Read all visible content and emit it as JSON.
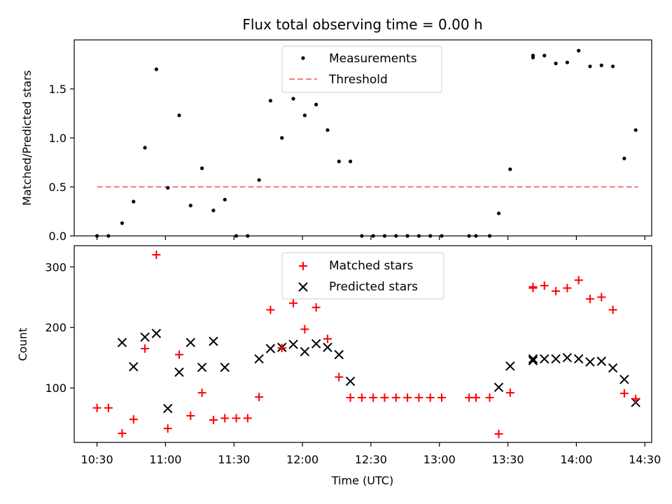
{
  "figure": {
    "title": "Flux total observing time = 0.00 h"
  },
  "colors": {
    "measurement": "#000000",
    "threshold": "#f08080",
    "matched": "#ff0000",
    "predicted": "#000000"
  },
  "chart_data": [
    {
      "type": "scatter",
      "ylabel": "Matched/Predicted stars",
      "xlabel": "",
      "xlim": [
        "10:20",
        "14:33"
      ],
      "ylim": [
        0,
        2.0
      ],
      "yticks": [
        0.0,
        0.5,
        1.0,
        1.5
      ],
      "ytick_labels": [
        "0.0",
        "0.5",
        "1.0",
        "1.5"
      ],
      "legend": {
        "placement": "top-center",
        "entries": [
          "Measurements",
          "Threshold"
        ]
      },
      "threshold": {
        "name": "Threshold",
        "value": 0.5,
        "x_range": [
          "10:30",
          "14:27"
        ]
      },
      "series": [
        {
          "name": "Measurements",
          "marker": "dot",
          "points": [
            [
              "10:30",
              0.0
            ],
            [
              "10:35",
              0.0
            ],
            [
              "10:41",
              0.13
            ],
            [
              "10:46",
              0.35
            ],
            [
              "10:51",
              0.9
            ],
            [
              "10:56",
              1.7
            ],
            [
              "11:01",
              0.49
            ],
            [
              "11:06",
              1.23
            ],
            [
              "11:11",
              0.31
            ],
            [
              "11:16",
              0.69
            ],
            [
              "11:21",
              0.26
            ],
            [
              "11:26",
              0.37
            ],
            [
              "11:31",
              0.0
            ],
            [
              "11:36",
              0.0
            ],
            [
              "11:41",
              0.57
            ],
            [
              "11:46",
              1.38
            ],
            [
              "11:51",
              1.0
            ],
            [
              "11:56",
              1.4
            ],
            [
              "12:01",
              1.23
            ],
            [
              "12:06",
              1.34
            ],
            [
              "12:11",
              1.08
            ],
            [
              "12:16",
              0.76
            ],
            [
              "12:21",
              0.76
            ],
            [
              "12:26",
              0.0
            ],
            [
              "12:31",
              0.0
            ],
            [
              "12:36",
              0.0
            ],
            [
              "12:41",
              0.0
            ],
            [
              "12:46",
              0.0
            ],
            [
              "12:51",
              0.0
            ],
            [
              "12:56",
              0.0
            ],
            [
              "13:01",
              0.0
            ],
            [
              "13:13",
              0.0
            ],
            [
              "13:16",
              0.0
            ],
            [
              "13:22",
              0.0
            ],
            [
              "13:26",
              0.23
            ],
            [
              "13:31",
              0.68
            ],
            [
              "13:41",
              1.82
            ],
            [
              "13:41",
              1.84
            ],
            [
              "13:46",
              1.84
            ],
            [
              "13:51",
              1.76
            ],
            [
              "13:56",
              1.77
            ],
            [
              "14:01",
              1.89
            ],
            [
              "14:06",
              1.73
            ],
            [
              "14:11",
              1.74
            ],
            [
              "14:16",
              1.73
            ],
            [
              "14:21",
              0.79
            ],
            [
              "14:26",
              1.08
            ]
          ]
        }
      ]
    },
    {
      "type": "scatter",
      "ylabel": "Count",
      "xlabel": "Time (UTC)",
      "xlim": [
        "10:20",
        "14:33"
      ],
      "ylim": [
        10,
        335
      ],
      "yticks": [
        100,
        200,
        300
      ],
      "ytick_labels": [
        "100",
        "200",
        "300"
      ],
      "xticks": [
        "10:30",
        "11:00",
        "11:30",
        "12:00",
        "12:30",
        "13:00",
        "13:30",
        "14:00",
        "14:30"
      ],
      "xtick_labels": [
        "10:30",
        "11:00",
        "11:30",
        "12:00",
        "12:30",
        "13:00",
        "13:30",
        "14:00",
        "14:30"
      ],
      "legend": {
        "placement": "top-center",
        "entries": [
          "Matched stars",
          "Predicted stars"
        ]
      },
      "series": [
        {
          "name": "Matched stars",
          "marker": "plus",
          "points": [
            [
              "10:30",
              67
            ],
            [
              "10:35",
              67
            ],
            [
              "10:41",
              25
            ],
            [
              "10:46",
              48
            ],
            [
              "10:51",
              165
            ],
            [
              "10:56",
              320
            ],
            [
              "11:01",
              33
            ],
            [
              "11:06",
              155
            ],
            [
              "11:11",
              54
            ],
            [
              "11:16",
              92
            ],
            [
              "11:21",
              47
            ],
            [
              "11:26",
              50
            ],
            [
              "11:31",
              50
            ],
            [
              "11:36",
              50
            ],
            [
              "11:41",
              85
            ],
            [
              "11:46",
              229
            ],
            [
              "11:51",
              166
            ],
            [
              "11:56",
              240
            ],
            [
              "12:01",
              197
            ],
            [
              "12:06",
              233
            ],
            [
              "12:11",
              181
            ],
            [
              "12:16",
              118
            ],
            [
              "12:21",
              84
            ],
            [
              "12:26",
              84
            ],
            [
              "12:31",
              84
            ],
            [
              "12:36",
              84
            ],
            [
              "12:41",
              84
            ],
            [
              "12:46",
              84
            ],
            [
              "12:51",
              84
            ],
            [
              "12:56",
              84
            ],
            [
              "13:01",
              84
            ],
            [
              "13:13",
              84
            ],
            [
              "13:16",
              84
            ],
            [
              "13:22",
              84
            ],
            [
              "13:26",
              24
            ],
            [
              "13:31",
              92
            ],
            [
              "13:41",
              265
            ],
            [
              "13:41",
              267
            ],
            [
              "13:46",
              269
            ],
            [
              "13:51",
              260
            ],
            [
              "13:56",
              265
            ],
            [
              "14:01",
              278
            ],
            [
              "14:06",
              247
            ],
            [
              "14:11",
              250
            ],
            [
              "14:16",
              229
            ],
            [
              "14:21",
              91
            ],
            [
              "14:26",
              82
            ]
          ]
        },
        {
          "name": "Predicted stars",
          "marker": "x",
          "points": [
            [
              "10:41",
              175
            ],
            [
              "10:46",
              135
            ],
            [
              "10:51",
              184
            ],
            [
              "10:56",
              190
            ],
            [
              "11:01",
              66
            ],
            [
              "11:06",
              126
            ],
            [
              "11:11",
              175
            ],
            [
              "11:16",
              134
            ],
            [
              "11:21",
              177
            ],
            [
              "11:26",
              134
            ],
            [
              "11:41",
              148
            ],
            [
              "11:46",
              165
            ],
            [
              "11:51",
              167
            ],
            [
              "11:56",
              172
            ],
            [
              "12:01",
              160
            ],
            [
              "12:06",
              173
            ],
            [
              "12:11",
              167
            ],
            [
              "12:16",
              155
            ],
            [
              "12:21",
              111
            ],
            [
              "13:26",
              101
            ],
            [
              "13:31",
              136
            ],
            [
              "13:41",
              145
            ],
            [
              "13:41",
              148
            ],
            [
              "13:46",
              148
            ],
            [
              "13:51",
              148
            ],
            [
              "13:56",
              150
            ],
            [
              "14:01",
              148
            ],
            [
              "14:06",
              143
            ],
            [
              "14:11",
              144
            ],
            [
              "14:16",
              133
            ],
            [
              "14:21",
              114
            ],
            [
              "14:26",
              76
            ]
          ]
        }
      ]
    }
  ]
}
